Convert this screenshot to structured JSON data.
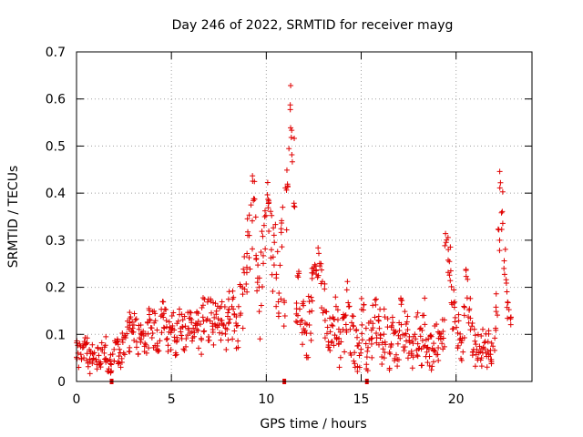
{
  "chart_data": {
    "type": "scatter",
    "title": "Day 246 of 2022, SRMTID for receiver mayg",
    "xlabel": "GPS time / hours",
    "ylabel": "SRMTID / TECUs",
    "xlim": [
      0,
      24
    ],
    "ylim": [
      0,
      0.7
    ],
    "xticks": [
      0,
      5,
      10,
      15,
      20
    ],
    "xtick_labels": [
      "0",
      "5",
      "10",
      "15",
      "20"
    ],
    "yticks": [
      0,
      0.1,
      0.2,
      0.3,
      0.4,
      0.5,
      0.6,
      0.7
    ],
    "ytick_labels": [
      "0",
      "0.1",
      "0.2",
      "0.3",
      "0.4",
      "0.5",
      "0.6",
      "0.7"
    ],
    "grid": true,
    "marker": "+",
    "color": "#e00000",
    "series": [
      {
        "name": "SRMTID",
        "x": [
          0.0,
          0.2,
          0.4,
          0.6,
          0.8,
          1.0,
          1.2,
          1.4,
          1.6,
          1.8,
          2.0,
          2.2,
          2.4,
          2.6,
          2.8,
          3.0,
          3.2,
          3.4,
          3.6,
          3.8,
          4.0,
          4.2,
          4.4,
          4.6,
          4.8,
          5.0,
          5.2,
          5.4,
          5.6,
          5.8,
          6.0,
          6.2,
          6.4,
          6.6,
          6.8,
          7.0,
          7.2,
          7.4,
          7.6,
          7.8,
          8.0,
          8.2,
          8.4,
          8.6,
          8.8,
          9.0,
          9.1,
          9.2,
          9.3,
          9.4,
          9.5,
          9.6,
          9.7,
          9.8,
          9.9,
          10.0,
          10.1,
          10.2,
          10.3,
          10.4,
          10.5,
          10.6,
          10.7,
          10.8,
          10.9,
          11.0,
          11.1,
          11.2,
          11.3,
          11.4,
          11.5,
          11.6,
          11.8,
          12.0,
          12.2,
          12.4,
          12.6,
          12.7,
          12.8,
          12.9,
          13.0,
          13.2,
          13.4,
          13.6,
          13.8,
          14.0,
          14.2,
          14.4,
          14.6,
          14.8,
          15.0,
          15.2,
          15.4,
          15.6,
          15.8,
          16.0,
          16.2,
          16.4,
          16.6,
          16.8,
          17.0,
          17.2,
          17.4,
          17.6,
          17.8,
          18.0,
          18.2,
          18.4,
          18.6,
          18.8,
          19.0,
          19.2,
          19.4,
          19.5,
          19.6,
          19.7,
          19.8,
          20.0,
          20.2,
          20.4,
          20.5,
          20.6,
          20.7,
          20.8,
          21.0,
          21.2,
          21.4,
          21.6,
          21.8,
          22.0,
          22.1,
          22.2,
          22.3,
          22.4,
          22.5,
          22.6,
          22.7,
          22.8
        ],
        "y": [
          0.06,
          0.05,
          0.07,
          0.04,
          0.06,
          0.05,
          0.06,
          0.07,
          0.05,
          0.04,
          0.06,
          0.05,
          0.08,
          0.1,
          0.12,
          0.11,
          0.09,
          0.08,
          0.1,
          0.12,
          0.11,
          0.09,
          0.13,
          0.12,
          0.1,
          0.11,
          0.09,
          0.12,
          0.1,
          0.13,
          0.11,
          0.12,
          0.1,
          0.14,
          0.13,
          0.15,
          0.12,
          0.14,
          0.13,
          0.11,
          0.15,
          0.14,
          0.12,
          0.17,
          0.22,
          0.27,
          0.31,
          0.36,
          0.41,
          0.3,
          0.21,
          0.17,
          0.24,
          0.29,
          0.33,
          0.4,
          0.36,
          0.31,
          0.26,
          0.29,
          0.22,
          0.18,
          0.25,
          0.3,
          0.16,
          0.39,
          0.48,
          0.57,
          0.53,
          0.44,
          0.14,
          0.18,
          0.12,
          0.09,
          0.14,
          0.2,
          0.25,
          0.24,
          0.22,
          0.19,
          0.15,
          0.11,
          0.09,
          0.14,
          0.08,
          0.12,
          0.16,
          0.1,
          0.07,
          0.05,
          0.13,
          0.07,
          0.09,
          0.15,
          0.11,
          0.08,
          0.1,
          0.07,
          0.09,
          0.08,
          0.14,
          0.11,
          0.09,
          0.06,
          0.1,
          0.08,
          0.13,
          0.07,
          0.06,
          0.09,
          0.08,
          0.1,
          0.3,
          0.27,
          0.24,
          0.2,
          0.15,
          0.11,
          0.08,
          0.12,
          0.21,
          0.17,
          0.13,
          0.09,
          0.07,
          0.06,
          0.08,
          0.07,
          0.06,
          0.09,
          0.15,
          0.32,
          0.4,
          0.36,
          0.25,
          0.2,
          0.16,
          0.13
        ],
        "spread": [
          0.03,
          0.03,
          0.03,
          0.03,
          0.03,
          0.03,
          0.03,
          0.03,
          0.03,
          0.03,
          0.03,
          0.02,
          0.03,
          0.04,
          0.03,
          0.04,
          0.04,
          0.03,
          0.04,
          0.04,
          0.04,
          0.05,
          0.04,
          0.04,
          0.04,
          0.04,
          0.04,
          0.04,
          0.04,
          0.04,
          0.04,
          0.04,
          0.05,
          0.05,
          0.05,
          0.05,
          0.05,
          0.04,
          0.05,
          0.05,
          0.05,
          0.06,
          0.05,
          0.07,
          0.09,
          0.09,
          0.08,
          0.08,
          0.05,
          0.08,
          0.07,
          0.08,
          0.08,
          0.07,
          0.05,
          0.05,
          0.07,
          0.06,
          0.07,
          0.06,
          0.07,
          0.05,
          0.08,
          0.08,
          0.05,
          0.08,
          0.07,
          0.06,
          0.07,
          0.08,
          0.04,
          0.06,
          0.05,
          0.04,
          0.06,
          0.06,
          0.04,
          0.05,
          0.06,
          0.05,
          0.06,
          0.05,
          0.05,
          0.06,
          0.05,
          0.06,
          0.06,
          0.05,
          0.04,
          0.04,
          0.05,
          0.05,
          0.05,
          0.06,
          0.05,
          0.05,
          0.06,
          0.05,
          0.05,
          0.05,
          0.05,
          0.06,
          0.05,
          0.04,
          0.05,
          0.05,
          0.06,
          0.04,
          0.04,
          0.05,
          0.04,
          0.04,
          0.02,
          0.04,
          0.05,
          0.05,
          0.05,
          0.04,
          0.04,
          0.04,
          0.04,
          0.05,
          0.05,
          0.04,
          0.04,
          0.04,
          0.04,
          0.04,
          0.04,
          0.04,
          0.05,
          0.06,
          0.06,
          0.07,
          0.05,
          0.05,
          0.05,
          0.04
        ]
      }
    ],
    "x_markers": [
      1.85,
      10.95,
      15.3
    ]
  }
}
